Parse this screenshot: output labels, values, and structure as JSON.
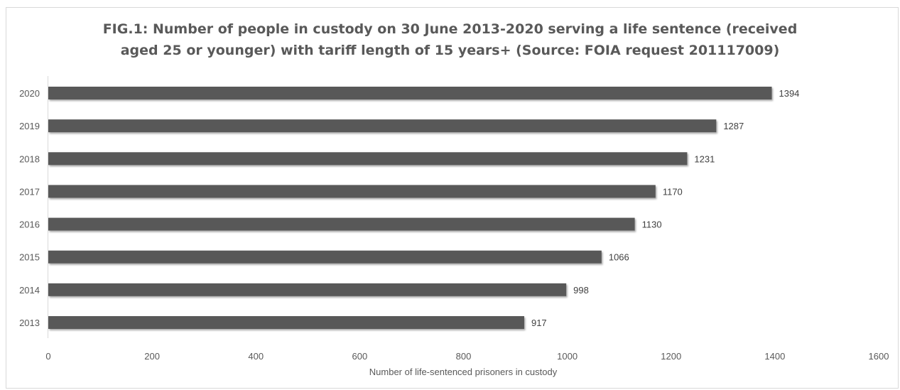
{
  "chart_data": {
    "type": "bar",
    "orientation": "horizontal",
    "title_lines": [
      "FIG.1: Number of people in custody on 30 June 2013-2020 serving a life sentence (received",
      "aged 25 or younger) with tariff length of 15 years+ (Source: FOIA request 201117009)"
    ],
    "xlabel": "Number of life-sentenced prisoners in custody",
    "ylabel": "",
    "categories": [
      "2013",
      "2014",
      "2015",
      "2016",
      "2017",
      "2018",
      "2019",
      "2020"
    ],
    "values": [
      917,
      998,
      1066,
      1130,
      1170,
      1231,
      1287,
      1394
    ],
    "xlim": [
      0,
      1600
    ],
    "xticks": [
      "0",
      "200",
      "400",
      "600",
      "800",
      "1000",
      "1200",
      "1400",
      "1600"
    ],
    "grid": false,
    "legend": "none",
    "bar_color": "#595959",
    "data_label_color": "#404040"
  }
}
